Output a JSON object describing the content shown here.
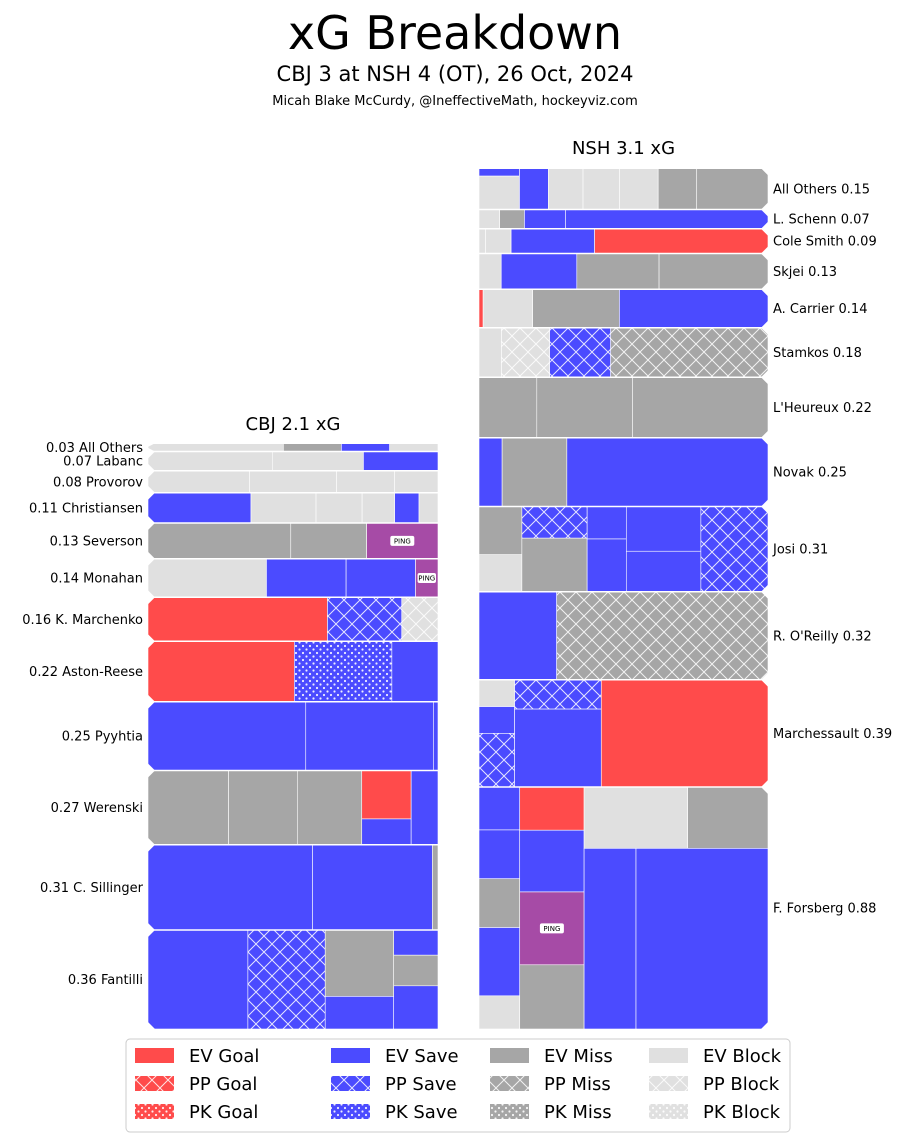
{
  "header": {
    "title": "xG Breakdown",
    "subtitle": "CBJ 3 at NSH 4 (OT), 26 Oct, 2024",
    "credit": "Micah Blake McCurdy, @IneffectiveMath, hockeyviz.com"
  },
  "colors": {
    "goal": "#ff4b4b",
    "save": "#4b4bff",
    "miss": "#a6a6a6",
    "block": "#e0e0e0",
    "ping": "#a64ba6"
  },
  "chart_data": {
    "type": "treemap",
    "legend_position": "bottom",
    "legend": [
      {
        "label": "EV Goal",
        "outcome": "goal",
        "state": "EV"
      },
      {
        "label": "EV Save",
        "outcome": "save",
        "state": "EV"
      },
      {
        "label": "EV Miss",
        "outcome": "miss",
        "state": "EV"
      },
      {
        "label": "EV Block",
        "outcome": "block",
        "state": "EV"
      },
      {
        "label": "PP Goal",
        "outcome": "goal",
        "state": "PP"
      },
      {
        "label": "PP Save",
        "outcome": "save",
        "state": "PP"
      },
      {
        "label": "PP Miss",
        "outcome": "miss",
        "state": "PP"
      },
      {
        "label": "PP Block",
        "outcome": "block",
        "state": "PP"
      },
      {
        "label": "PK Goal",
        "outcome": "goal",
        "state": "PK"
      },
      {
        "label": "PK Save",
        "outcome": "save",
        "state": "PK"
      },
      {
        "label": "PK Miss",
        "outcome": "miss",
        "state": "PK"
      },
      {
        "label": "PK Block",
        "outcome": "block",
        "state": "PK"
      }
    ],
    "teams": [
      {
        "team": "CBJ",
        "title": "CBJ 2.1 xG",
        "total": 2.1,
        "label_side": "left",
        "players": [
          {
            "name": "All Others",
            "label": "0.03 All Others",
            "xg": 0.03,
            "shots": [
              {
                "o": "block",
                "s": "EV",
                "v": 0.014
              },
              {
                "o": "miss",
                "s": "EV",
                "v": 0.006
              },
              {
                "o": "save",
                "s": "EV",
                "v": 0.005
              },
              {
                "o": "block",
                "s": "EV",
                "v": 0.005
              }
            ]
          },
          {
            "name": "Labanc",
            "label": "0.07 Labanc",
            "xg": 0.07,
            "shots": [
              {
                "o": "block",
                "s": "EV",
                "v": 0.03
              },
              {
                "o": "block",
                "s": "EV",
                "v": 0.022
              },
              {
                "o": "save",
                "s": "EV",
                "v": 0.018
              }
            ]
          },
          {
            "name": "Provorov",
            "label": "0.08 Provorov",
            "xg": 0.08,
            "shots": [
              {
                "o": "block",
                "s": "EV",
                "v": 0.028
              },
              {
                "o": "block",
                "s": "EV",
                "v": 0.024
              },
              {
                "o": "block",
                "s": "EV",
                "v": 0.016
              },
              {
                "o": "block",
                "s": "EV",
                "v": 0.012
              }
            ]
          },
          {
            "name": "Christiansen",
            "label": "0.11 Christiansen",
            "xg": 0.11,
            "shots": [
              {
                "o": "save",
                "s": "EV",
                "v": 0.038
              },
              {
                "o": "block",
                "s": "EV",
                "v": 0.024
              },
              {
                "o": "block",
                "s": "EV",
                "v": 0.017
              },
              {
                "o": "block",
                "s": "EV",
                "v": 0.012
              },
              {
                "o": "save",
                "s": "EV",
                "v": 0.009
              },
              {
                "o": "block",
                "s": "EV",
                "v": 0.007
              }
            ]
          },
          {
            "name": "Severson",
            "label": "0.13 Severson",
            "xg": 0.13,
            "shots": [
              {
                "o": "miss",
                "s": "EV",
                "v": 0.064
              },
              {
                "o": "miss",
                "s": "EV",
                "v": 0.034
              },
              {
                "o": "ping",
                "s": "EV",
                "v": 0.032,
                "text": "PING"
              }
            ]
          },
          {
            "name": "Monahan",
            "label": "0.14 Monahan",
            "xg": 0.14,
            "shots": [
              {
                "o": "block",
                "s": "EV",
                "v": 0.058
              },
              {
                "o": "save",
                "s": "EV",
                "v": 0.039
              },
              {
                "o": "save",
                "s": "EV",
                "v": 0.034
              },
              {
                "o": "ping",
                "s": "EV",
                "v": 0.011,
                "text": "PING"
              }
            ]
          },
          {
            "name": "K. Marchenko",
            "label": "0.16 K. Marchenko",
            "xg": 0.16,
            "shots": [
              {
                "o": "goal",
                "s": "EV",
                "v": 0.099
              },
              {
                "o": "save",
                "s": "PP",
                "v": 0.041
              },
              {
                "o": "block",
                "s": "PP",
                "v": 0.02
              }
            ]
          },
          {
            "name": "Aston-Reese",
            "label": "0.22 Aston-Reese",
            "xg": 0.22,
            "shots": [
              {
                "o": "goal",
                "s": "EV",
                "v": 0.111
              },
              {
                "o": "save",
                "s": "PK",
                "v": 0.074
              },
              {
                "o": "save",
                "s": "EV",
                "v": 0.035
              }
            ]
          },
          {
            "name": "Pyyhtia",
            "label": "0.25 Pyyhtia",
            "xg": 0.25,
            "shots": [
              {
                "o": "save",
                "s": "EV",
                "v": 0.136
              },
              {
                "o": "save",
                "s": "EV",
                "v": 0.11
              },
              {
                "o": "save",
                "s": "EV",
                "v": 0.004
              }
            ]
          },
          {
            "name": "Werenski",
            "label": "0.27 Werenski",
            "xg": 0.27,
            "shots": [
              {
                "o": "miss",
                "s": "EV",
                "v": 0.075
              },
              {
                "o": "miss",
                "s": "EV",
                "v": 0.064
              },
              {
                "o": "miss",
                "s": "EV",
                "v": 0.06
              },
              {
                "o": "goal",
                "s": "EV",
                "v": 0.03
              },
              {
                "o": "save",
                "s": "EV",
                "v": 0.016
              },
              {
                "o": "save",
                "s": "EV",
                "v": 0.025
              }
            ]
          },
          {
            "name": "C. Sillinger",
            "label": "0.31 C. Sillinger",
            "xg": 0.31,
            "shots": [
              {
                "o": "save",
                "s": "EV",
                "v": 0.176
              },
              {
                "o": "save",
                "s": "EV",
                "v": 0.128
              },
              {
                "o": "miss",
                "s": "EV",
                "v": 0.006
              }
            ]
          },
          {
            "name": "Fantilli",
            "label": "0.36 Fantilli",
            "xg": 0.36,
            "shots": [
              {
                "o": "save",
                "s": "EV",
                "v": 0.124
              },
              {
                "o": "save",
                "s": "PP",
                "v": 0.096
              },
              {
                "o": "miss",
                "s": "EV",
                "v": 0.057
              },
              {
                "o": "save",
                "s": "EV",
                "v": 0.028
              },
              {
                "o": "save",
                "s": "EV",
                "v": 0.014
              },
              {
                "o": "miss",
                "s": "EV",
                "v": 0.017
              },
              {
                "o": "save",
                "s": "EV",
                "v": 0.024
              }
            ]
          }
        ]
      },
      {
        "team": "NSH",
        "title": "NSH 3.1 xG",
        "total": 3.1,
        "label_side": "right",
        "players": [
          {
            "name": "All Others",
            "label": "All Others 0.15",
            "xg": 0.15,
            "shots": [
              {
                "o": "save",
                "s": "EV",
                "v": 0.004
              },
              {
                "o": "block",
                "s": "EV",
                "v": 0.017
              },
              {
                "o": "save",
                "s": "EV",
                "v": 0.015
              },
              {
                "o": "block",
                "s": "EV",
                "v": 0.018
              },
              {
                "o": "block",
                "s": "EV",
                "v": 0.019
              },
              {
                "o": "block",
                "s": "EV",
                "v": 0.02
              },
              {
                "o": "miss",
                "s": "EV",
                "v": 0.02
              },
              {
                "o": "miss",
                "s": "EV",
                "v": 0.037
              }
            ]
          },
          {
            "name": "L. Schenn",
            "label": "L. Schenn 0.07",
            "xg": 0.07,
            "shots": [
              {
                "o": "block",
                "s": "EV",
                "v": 0.005
              },
              {
                "o": "miss",
                "s": "EV",
                "v": 0.006
              },
              {
                "o": "save",
                "s": "EV",
                "v": 0.01
              },
              {
                "o": "save",
                "s": "EV",
                "v": 0.049
              }
            ]
          },
          {
            "name": "Cole Smith",
            "label": "Cole Smith 0.09",
            "xg": 0.09,
            "shots": [
              {
                "o": "block",
                "s": "EV",
                "v": 0.002
              },
              {
                "o": "block",
                "s": "EV",
                "v": 0.008
              },
              {
                "o": "save",
                "s": "EV",
                "v": 0.026
              },
              {
                "o": "goal",
                "s": "EV",
                "v": 0.054
              }
            ]
          },
          {
            "name": "Skjei",
            "label": "Skjei 0.13",
            "xg": 0.13,
            "shots": [
              {
                "o": "block",
                "s": "EV",
                "v": 0.01
              },
              {
                "o": "save",
                "s": "EV",
                "v": 0.034
              },
              {
                "o": "miss",
                "s": "EV",
                "v": 0.037
              },
              {
                "o": "miss",
                "s": "EV",
                "v": 0.049
              }
            ]
          },
          {
            "name": "A. Carrier",
            "label": "A. Carrier 0.14",
            "xg": 0.14,
            "shots": [
              {
                "o": "goal",
                "s": "EV",
                "v": 0.002
              },
              {
                "o": "block",
                "s": "EV",
                "v": 0.024
              },
              {
                "o": "miss",
                "s": "EV",
                "v": 0.042
              },
              {
                "o": "save",
                "s": "EV",
                "v": 0.072
              }
            ]
          },
          {
            "name": "Stamkos",
            "label": "Stamkos 0.18",
            "xg": 0.18,
            "shots": [
              {
                "o": "block",
                "s": "EV",
                "v": 0.014
              },
              {
                "o": "block",
                "s": "PP",
                "v": 0.03
              },
              {
                "o": "save",
                "s": "PP",
                "v": 0.038
              },
              {
                "o": "miss",
                "s": "PP",
                "v": 0.098
              }
            ]
          },
          {
            "name": "L'Heureux",
            "label": "L'Heureux 0.22",
            "xg": 0.22,
            "shots": [
              {
                "o": "miss",
                "s": "EV",
                "v": 0.044
              },
              {
                "o": "miss",
                "s": "EV",
                "v": 0.073
              },
              {
                "o": "miss",
                "s": "EV",
                "v": 0.103
              }
            ]
          },
          {
            "name": "Novak",
            "label": "Novak 0.25",
            "xg": 0.25,
            "shots": [
              {
                "o": "save",
                "s": "EV",
                "v": 0.02
              },
              {
                "o": "miss",
                "s": "EV",
                "v": 0.056
              },
              {
                "o": "save",
                "s": "EV",
                "v": 0.174
              }
            ]
          },
          {
            "name": "Josi",
            "label": "Josi 0.31",
            "xg": 0.31,
            "shots": [
              {
                "o": "miss",
                "s": "EV",
                "v": 0.026
              },
              {
                "o": "block",
                "s": "EV",
                "v": 0.02
              },
              {
                "o": "save",
                "s": "PP",
                "v": 0.026
              },
              {
                "o": "miss",
                "s": "EV",
                "v": 0.044
              },
              {
                "o": "save",
                "s": "EV",
                "v": 0.016
              },
              {
                "o": "save",
                "s": "EV",
                "v": 0.026
              },
              {
                "o": "save",
                "s": "EV",
                "v": 0.042
              },
              {
                "o": "save",
                "s": "EV",
                "v": 0.038
              },
              {
                "o": "save",
                "s": "PP",
                "v": 0.072
              }
            ]
          },
          {
            "name": "R. O'Reilly",
            "label": "R. O'Reilly 0.32",
            "xg": 0.32,
            "shots": [
              {
                "o": "save",
                "s": "EV",
                "v": 0.086
              },
              {
                "o": "miss",
                "s": "PP",
                "v": 0.234
              }
            ]
          },
          {
            "name": "Marchessault",
            "label": "Marchessault 0.39",
            "xg": 0.39,
            "shots": [
              {
                "o": "block",
                "s": "EV",
                "v": 0.012
              },
              {
                "o": "save",
                "s": "EV",
                "v": 0.012
              },
              {
                "o": "save",
                "s": "PP",
                "v": 0.024
              },
              {
                "o": "save",
                "s": "PP",
                "v": 0.032
              },
              {
                "o": "save",
                "s": "EV",
                "v": 0.085
              },
              {
                "o": "goal",
                "s": "EV",
                "v": 0.225
              }
            ]
          },
          {
            "name": "F. Forsberg",
            "label": "F. Forsberg 0.88",
            "xg": 0.88,
            "shots": [
              {
                "o": "save",
                "s": "EV",
                "v": 0.022
              },
              {
                "o": "save",
                "s": "EV",
                "v": 0.025
              },
              {
                "o": "miss",
                "s": "EV",
                "v": 0.025
              },
              {
                "o": "save",
                "s": "EV",
                "v": 0.035
              },
              {
                "o": "block",
                "s": "EV",
                "v": 0.017
              },
              {
                "o": "goal",
                "s": "EV",
                "v": 0.035
              },
              {
                "o": "save",
                "s": "EV",
                "v": 0.05
              },
              {
                "o": "ping",
                "s": "EV",
                "v": 0.059,
                "text": "PING"
              },
              {
                "o": "miss",
                "s": "EV",
                "v": 0.052
              },
              {
                "o": "block",
                "s": "EV",
                "v": 0.08
              },
              {
                "o": "miss",
                "s": "EV",
                "v": 0.062
              },
              {
                "o": "save",
                "s": "EV",
                "v": 0.118
              },
              {
                "o": "save",
                "s": "EV",
                "v": 0.3
              }
            ]
          }
        ]
      }
    ]
  }
}
